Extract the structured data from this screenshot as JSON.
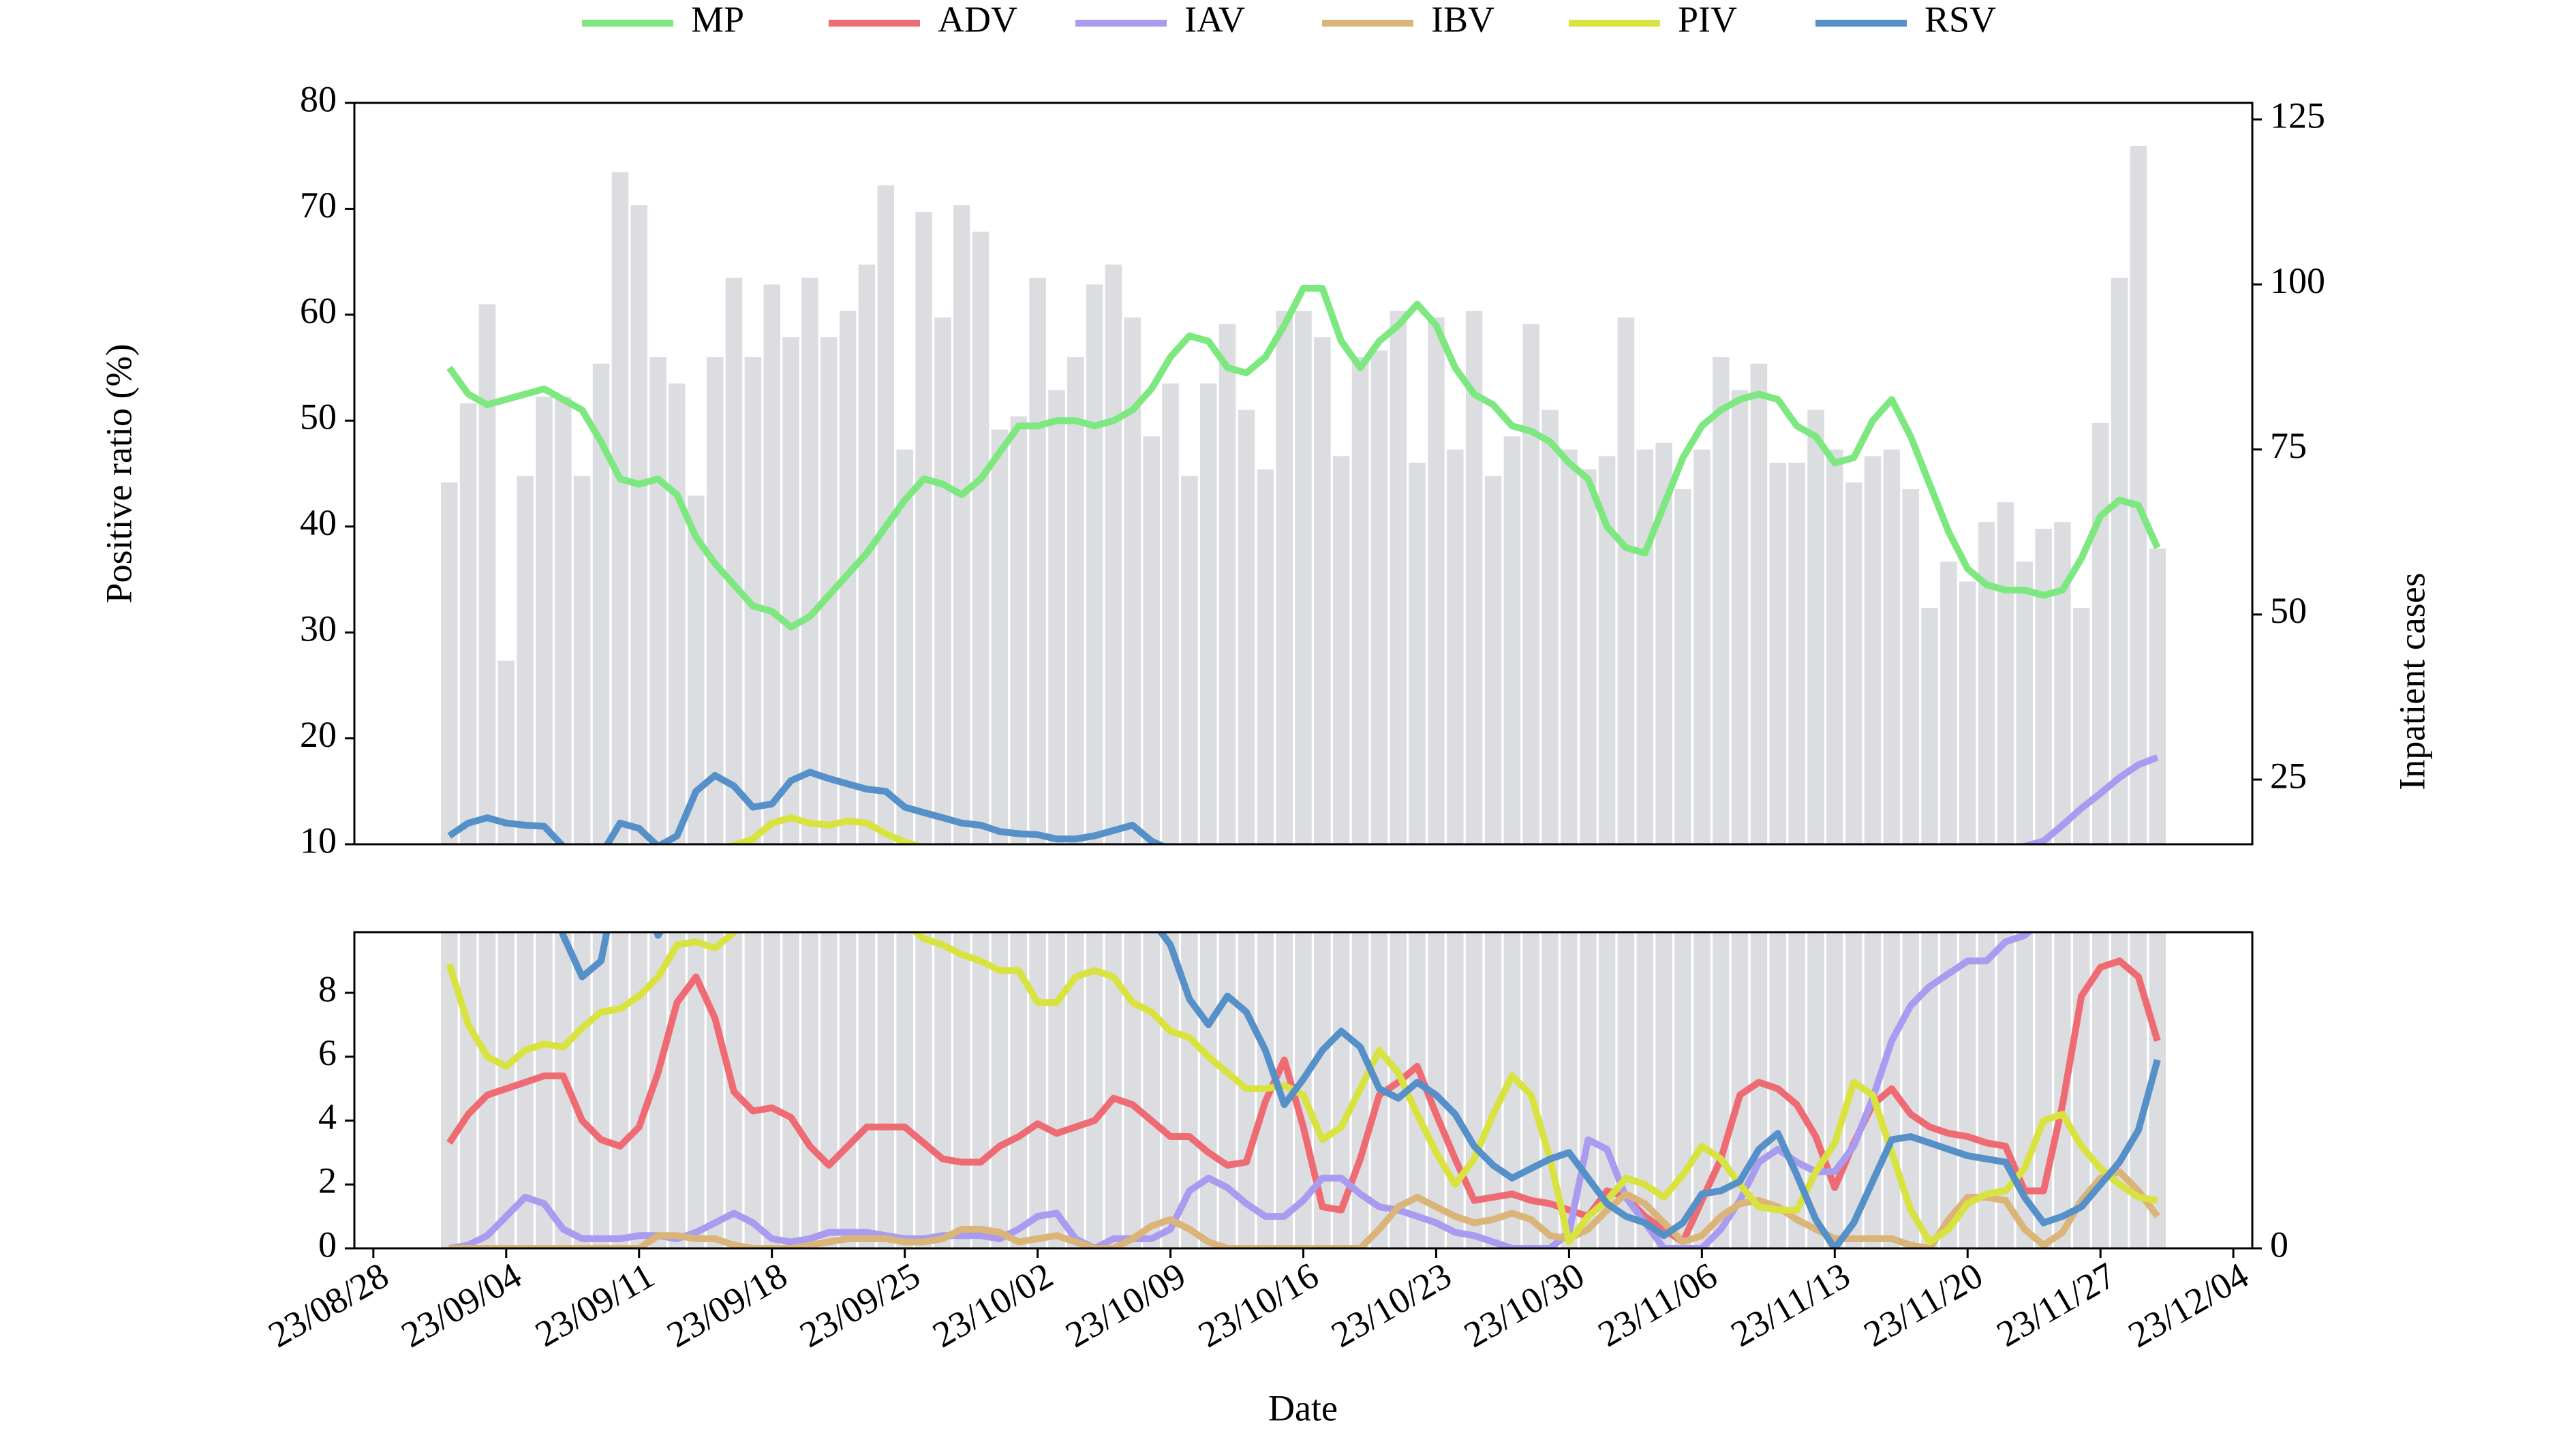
{
  "chart_data": {
    "type": "line",
    "xlabel": "Date",
    "ylabel": "Positive ratio (%)",
    "y2label": "Inpatient cases",
    "legend": "top",
    "x": [
      "2023-09-01",
      "2023-09-02",
      "2023-09-03",
      "2023-09-04",
      "2023-09-05",
      "2023-09-06",
      "2023-09-07",
      "2023-09-08",
      "2023-09-09",
      "2023-09-10",
      "2023-09-11",
      "2023-09-12",
      "2023-09-13",
      "2023-09-14",
      "2023-09-15",
      "2023-09-16",
      "2023-09-17",
      "2023-09-18",
      "2023-09-19",
      "2023-09-20",
      "2023-09-21",
      "2023-09-22",
      "2023-09-23",
      "2023-09-24",
      "2023-09-25",
      "2023-09-26",
      "2023-09-27",
      "2023-09-28",
      "2023-09-29",
      "2023-09-30",
      "2023-10-01",
      "2023-10-02",
      "2023-10-03",
      "2023-10-04",
      "2023-10-05",
      "2023-10-06",
      "2023-10-07",
      "2023-10-08",
      "2023-10-09",
      "2023-10-10",
      "2023-10-11",
      "2023-10-12",
      "2023-10-13",
      "2023-10-14",
      "2023-10-15",
      "2023-10-16",
      "2023-10-17",
      "2023-10-18",
      "2023-10-19",
      "2023-10-20",
      "2023-10-21",
      "2023-10-22",
      "2023-10-23",
      "2023-10-24",
      "2023-10-25",
      "2023-10-26",
      "2023-10-27",
      "2023-10-28",
      "2023-10-29",
      "2023-10-30",
      "2023-10-31",
      "2023-11-01",
      "2023-11-02",
      "2023-11-03",
      "2023-11-04",
      "2023-11-05",
      "2023-11-06",
      "2023-11-07",
      "2023-11-08",
      "2023-11-09",
      "2023-11-10",
      "2023-11-11",
      "2023-11-12",
      "2023-11-13",
      "2023-11-14",
      "2023-11-15",
      "2023-11-16",
      "2023-11-17",
      "2023-11-18",
      "2023-11-19",
      "2023-11-20",
      "2023-11-21",
      "2023-11-22",
      "2023-11-23",
      "2023-11-24",
      "2023-11-25",
      "2023-11-26",
      "2023-11-27",
      "2023-11-28",
      "2023-11-29",
      "2023-11-30"
    ],
    "xlim": [
      "2023-08-27",
      "2023-12-05"
    ],
    "xticks": [
      {
        "value": "2023-08-28",
        "label": "23/08/28"
      },
      {
        "value": "2023-09-04",
        "label": "23/09/04"
      },
      {
        "value": "2023-09-11",
        "label": "23/09/11"
      },
      {
        "value": "2023-09-18",
        "label": "23/09/18"
      },
      {
        "value": "2023-09-25",
        "label": "23/09/25"
      },
      {
        "value": "2023-10-02",
        "label": "23/10/02"
      },
      {
        "value": "2023-10-09",
        "label": "23/10/09"
      },
      {
        "value": "2023-10-16",
        "label": "23/10/16"
      },
      {
        "value": "2023-10-23",
        "label": "23/10/23"
      },
      {
        "value": "2023-10-30",
        "label": "23/10/30"
      },
      {
        "value": "2023-11-06",
        "label": "23/11/06"
      },
      {
        "value": "2023-11-13",
        "label": "23/11/13"
      },
      {
        "value": "2023-11-20",
        "label": "23/11/20"
      },
      {
        "value": "2023-11-27",
        "label": "23/11/27"
      },
      {
        "value": "2023-12-04",
        "label": "23/12/04"
      }
    ],
    "panels": [
      {
        "ylim": [
          10,
          80
        ],
        "yticks": [
          10,
          20,
          30,
          40,
          50,
          60,
          70,
          80
        ],
        "y2lim": [
          15.2,
          127.5
        ],
        "y2ticks": [
          25,
          50,
          75,
          100,
          125
        ]
      },
      {
        "ylim": [
          0,
          9.9
        ],
        "yticks": [
          0,
          2,
          4,
          6,
          8
        ],
        "y2lim": [
          0,
          15.2
        ],
        "y2ticks": [
          0
        ]
      }
    ],
    "bars": {
      "axis": "y2",
      "color": "#dcdde1",
      "values": [
        70,
        82,
        97,
        43,
        71,
        83,
        83,
        71,
        88,
        117,
        112,
        89,
        85,
        68,
        89,
        101,
        89,
        100,
        92,
        101,
        92,
        96,
        103,
        115,
        75,
        111,
        95,
        112,
        108,
        78,
        80,
        101,
        84,
        89,
        100,
        103,
        95,
        77,
        85,
        71,
        85,
        94,
        81,
        72,
        96,
        96,
        92,
        74,
        89,
        90,
        96,
        73,
        95,
        75,
        96,
        71,
        77,
        94,
        81,
        75,
        72,
        74,
        95,
        75,
        76,
        69,
        75,
        89,
        84,
        88,
        73,
        73,
        81,
        75,
        70,
        74,
        75,
        69,
        51,
        58,
        55,
        64,
        67,
        58,
        63,
        64,
        51,
        79,
        101,
        121,
        60
      ]
    },
    "series": [
      {
        "name": "MP",
        "color": "#7de87f",
        "values": [
          55,
          52.5,
          51.5,
          52,
          52.5,
          53,
          52,
          51,
          48,
          44.5,
          44,
          44.5,
          43,
          39,
          36.5,
          34.5,
          32.5,
          32,
          30.5,
          31.5,
          33.5,
          35.5,
          37.5,
          40,
          42.5,
          44.5,
          44,
          43,
          44.5,
          47,
          49.5,
          49.5,
          50,
          50,
          49.5,
          50,
          51,
          53,
          56,
          58,
          57.5,
          55,
          54.5,
          56,
          59,
          62.5,
          62.5,
          57.5,
          55,
          57.5,
          59,
          61,
          59,
          55,
          52.5,
          51.5,
          49.5,
          49,
          48,
          46,
          44.5,
          40,
          38,
          37.5,
          42,
          46.5,
          49.5,
          51,
          52,
          52.5,
          52,
          49.5,
          48.5,
          46,
          46.5,
          50,
          52,
          48.5,
          44,
          39.5,
          36,
          34.5,
          34,
          34,
          33.5,
          34,
          37,
          41,
          42.5,
          42,
          38
        ]
      },
      {
        "name": "ADV",
        "color": "#ef6b73",
        "values": [
          3.3,
          4.2,
          4.8,
          5.0,
          5.2,
          5.4,
          5.4,
          4.0,
          3.4,
          3.2,
          3.8,
          5.5,
          7.7,
          8.5,
          7.2,
          4.9,
          4.3,
          4.4,
          4.1,
          3.2,
          2.6,
          3.2,
          3.8,
          3.8,
          3.8,
          3.3,
          2.8,
          2.7,
          2.7,
          3.2,
          3.5,
          3.9,
          3.6,
          3.8,
          4.0,
          4.7,
          4.5,
          4.0,
          3.5,
          3.5,
          3.0,
          2.6,
          2.7,
          4.6,
          5.9,
          3.8,
          1.3,
          1.2,
          2.8,
          4.8,
          5.2,
          5.7,
          4.2,
          2.8,
          1.5,
          1.6,
          1.7,
          1.5,
          1.4,
          1.2,
          1.0,
          1.8,
          1.6,
          1.0,
          0.6,
          0.2,
          1.5,
          2.8,
          4.8,
          5.2,
          5.0,
          4.5,
          3.5,
          1.9,
          3.3,
          4.5,
          5.0,
          4.2,
          3.8,
          3.6,
          3.5,
          3.3,
          3.2,
          1.8,
          1.8,
          4.5,
          7.9,
          8.8,
          9.0,
          8.5,
          6.5
        ]
      },
      {
        "name": "IAV",
        "color": "#a99bf0",
        "values": [
          0,
          0.1,
          0.4,
          1.0,
          1.6,
          1.4,
          0.6,
          0.3,
          0.3,
          0.3,
          0.4,
          0.4,
          0.3,
          0.5,
          0.8,
          1.1,
          0.8,
          0.3,
          0.2,
          0.3,
          0.5,
          0.5,
          0.5,
          0.4,
          0.3,
          0.3,
          0.4,
          0.4,
          0.4,
          0.3,
          0.6,
          1.0,
          1.1,
          0.3,
          0,
          0.3,
          0.3,
          0.3,
          0.6,
          1.8,
          2.2,
          1.9,
          1.4,
          1.0,
          1.0,
          1.5,
          2.2,
          2.2,
          1.7,
          1.3,
          1.2,
          1.0,
          0.8,
          0.5,
          0.4,
          0.2,
          0,
          0,
          0,
          0.5,
          3.4,
          3.1,
          1.6,
          0.8,
          0,
          0,
          0,
          0.6,
          1.5,
          2.7,
          3.1,
          2.7,
          2.4,
          2.4,
          3.2,
          4.7,
          6.5,
          7.6,
          8.2,
          8.6,
          9.0,
          9.0,
          9.6,
          9.8,
          10.3,
          11.8,
          13.4,
          14.8,
          16.3,
          17.5,
          18.2
        ]
      },
      {
        "name": "IBV",
        "color": "#dbb47a",
        "values": [
          0,
          0,
          0,
          0,
          0,
          0,
          0,
          0,
          0,
          0,
          0,
          0.4,
          0.4,
          0.3,
          0.3,
          0.1,
          0,
          0,
          0,
          0.1,
          0.2,
          0.3,
          0.3,
          0.3,
          0.2,
          0.2,
          0.3,
          0.6,
          0.6,
          0.5,
          0.2,
          0.3,
          0.4,
          0.2,
          0,
          0,
          0.3,
          0.7,
          0.9,
          0.6,
          0.2,
          0,
          0,
          0,
          0,
          0,
          0,
          0,
          0,
          0.6,
          1.3,
          1.6,
          1.3,
          1.0,
          0.8,
          0.9,
          1.1,
          0.9,
          0.4,
          0.3,
          0.6,
          1.2,
          1.7,
          1.4,
          0.8,
          0.2,
          0.4,
          1.0,
          1.4,
          1.5,
          1.3,
          0.9,
          0.6,
          0.3,
          0.3,
          0.3,
          0.3,
          0.1,
          0,
          0.9,
          1.6,
          1.6,
          1.5,
          0.6,
          0.1,
          0.5,
          1.5,
          2.2,
          2.4,
          1.8,
          1.0
        ]
      },
      {
        "name": "PIV",
        "color": "#d8e340",
        "values": [
          8.9,
          7.0,
          6.0,
          5.7,
          6.2,
          6.4,
          6.3,
          6.9,
          7.4,
          7.5,
          7.9,
          8.5,
          9.5,
          9.6,
          9.4,
          9.9,
          10.5,
          12,
          12.5,
          12,
          11.8,
          12.2,
          12,
          11,
          10.2,
          9.7,
          9.5,
          9.2,
          9.0,
          8.7,
          8.7,
          7.7,
          7.7,
          8.5,
          8.7,
          8.5,
          7.7,
          7.4,
          6.8,
          6.6,
          6.0,
          5.5,
          5.0,
          5.0,
          5.1,
          4.8,
          3.4,
          3.8,
          5.0,
          6.2,
          5.5,
          4.2,
          3.0,
          2.0,
          2.8,
          4.2,
          5.4,
          4.8,
          2.8,
          0.2,
          1.0,
          1.5,
          2.2,
          2.0,
          1.6,
          2.3,
          3.2,
          2.8,
          2.0,
          1.3,
          1.2,
          1.2,
          2.4,
          3.3,
          5.2,
          4.8,
          3.0,
          1.2,
          0.2,
          0.6,
          1.4,
          1.7,
          1.8,
          2.5,
          4.0,
          4.2,
          3.2,
          2.5,
          2.0,
          1.6,
          1.5
        ]
      },
      {
        "name": "RSV",
        "color": "#5590c8",
        "values": [
          10.8,
          12,
          12.5,
          12,
          11.8,
          11.7,
          9.8,
          8.5,
          9,
          12,
          11.5,
          9.8,
          10.8,
          15,
          16.5,
          15.5,
          13.5,
          13.8,
          16,
          16.8,
          16.2,
          15.7,
          15.2,
          15,
          13.5,
          13,
          12.5,
          12,
          11.8,
          11.2,
          11,
          10.9,
          10.5,
          10.5,
          10.8,
          11.3,
          11.8,
          10.3,
          9.5,
          7.8,
          7.0,
          7.9,
          7.4,
          6.2,
          4.5,
          5.3,
          6.2,
          6.8,
          6.3,
          5.0,
          4.7,
          5.2,
          4.8,
          4.2,
          3.2,
          2.6,
          2.2,
          2.5,
          2.8,
          3.0,
          2.2,
          1.4,
          1.0,
          0.8,
          0.4,
          0.8,
          1.7,
          1.8,
          2.1,
          3.1,
          3.6,
          2.3,
          0.9,
          0,
          0.8,
          2.1,
          3.4,
          3.5,
          3.3,
          3.1,
          2.9,
          2.8,
          2.7,
          1.6,
          0.8,
          1.0,
          1.3,
          2.0,
          2.7,
          3.7,
          5.9
        ]
      }
    ]
  }
}
